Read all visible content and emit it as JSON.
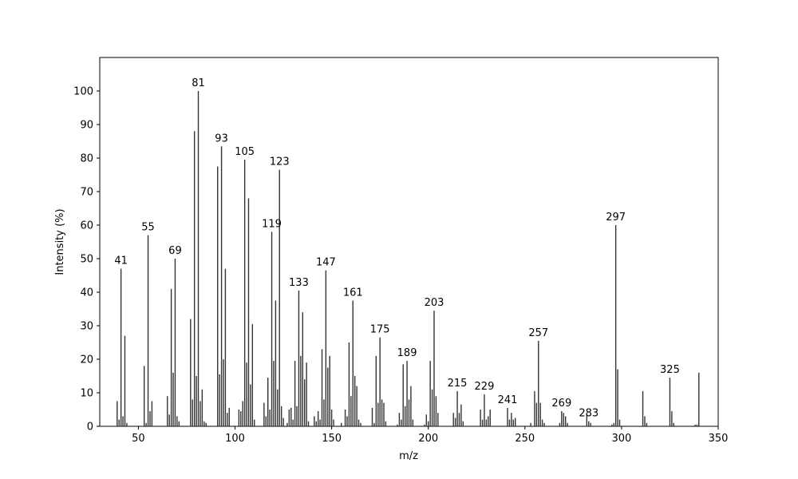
{
  "chart_data": {
    "type": "bar",
    "xlabel": "m/z",
    "ylabel": "Intensity (%)",
    "x": [
      39,
      40,
      41,
      42,
      43,
      44,
      53,
      54,
      55,
      56,
      57,
      65,
      66,
      67,
      68,
      69,
      70,
      71,
      77,
      78,
      79,
      80,
      81,
      82,
      83,
      84,
      85,
      91,
      92,
      93,
      94,
      95,
      96,
      97,
      102,
      103,
      104,
      105,
      106,
      107,
      108,
      109,
      110,
      115,
      116,
      117,
      118,
      119,
      120,
      121,
      122,
      123,
      124,
      125,
      127,
      128,
      129,
      130,
      131,
      132,
      133,
      134,
      135,
      136,
      137,
      138,
      141,
      142,
      143,
      144,
      145,
      146,
      147,
      148,
      149,
      150,
      151,
      155,
      157,
      158,
      159,
      160,
      161,
      162,
      163,
      164,
      165,
      171,
      172,
      173,
      174,
      175,
      176,
      177,
      178,
      184,
      185,
      186,
      187,
      188,
      189,
      190,
      191,
      192,
      198,
      199,
      200,
      201,
      202,
      203,
      204,
      205,
      213,
      214,
      215,
      216,
      217,
      218,
      227,
      228,
      229,
      230,
      231,
      232,
      241,
      242,
      243,
      244,
      245,
      253,
      255,
      256,
      257,
      258,
      259,
      260,
      268,
      269,
      270,
      271,
      272,
      282,
      283,
      284,
      295,
      296,
      297,
      298,
      299,
      311,
      312,
      313,
      325,
      326,
      327,
      338,
      339,
      340
    ],
    "values": [
      7.5,
      2,
      47,
      3,
      27,
      1,
      18,
      1,
      57,
      4.5,
      7.5,
      9,
      3.5,
      41,
      16,
      50,
      3,
      1.5,
      32,
      8,
      88,
      15,
      100,
      7.5,
      11,
      1.5,
      1,
      77.5,
      15.5,
      83.5,
      20,
      47,
      4,
      5.5,
      5,
      4.5,
      7.5,
      79.5,
      19,
      68,
      12.5,
      30.5,
      2,
      7,
      3,
      14.5,
      5,
      58,
      19.5,
      37.5,
      11,
      76.5,
      6,
      2.5,
      1,
      5,
      5.5,
      2,
      19.5,
      6,
      40.5,
      21,
      34,
      14,
      19,
      1.5,
      3,
      1.5,
      4.5,
      2,
      23,
      8,
      46.5,
      17.5,
      21,
      5,
      2,
      1,
      5,
      3,
      25,
      9,
      37.5,
      15,
      12,
      2,
      1,
      5.5,
      1,
      21,
      7,
      26.5,
      8,
      7,
      1.5,
      0.5,
      4,
      2,
      18.5,
      6,
      19.5,
      8,
      12,
      2,
      0.5,
      3.5,
      1.5,
      19.5,
      11,
      34.5,
      9,
      4,
      4,
      2.5,
      10.5,
      4,
      6.5,
      1.5,
      5,
      2,
      9.5,
      2,
      3,
      5,
      5.5,
      2,
      4,
      2,
      2.5,
      1,
      10.5,
      7,
      25.5,
      7,
      2,
      1,
      1,
      4.5,
      4,
      3,
      1,
      3.5,
      1.5,
      1,
      0.5,
      1,
      60,
      17,
      2,
      10.5,
      3,
      1,
      14.5,
      4.5,
      1,
      0.5,
      0.5,
      16
    ],
    "peak_labels": [
      41,
      55,
      69,
      81,
      93,
      105,
      119,
      123,
      133,
      147,
      161,
      175,
      189,
      203,
      215,
      229,
      241,
      257,
      269,
      283,
      297,
      325
    ],
    "color": "#333333",
    "xlim": [
      30,
      350
    ],
    "xticks": [
      50,
      100,
      150,
      200,
      250,
      300,
      350
    ],
    "ylim": [
      0,
      110
    ],
    "yticks": [
      0,
      10,
      20,
      30,
      40,
      50,
      60,
      70,
      80,
      90,
      100
    ]
  }
}
